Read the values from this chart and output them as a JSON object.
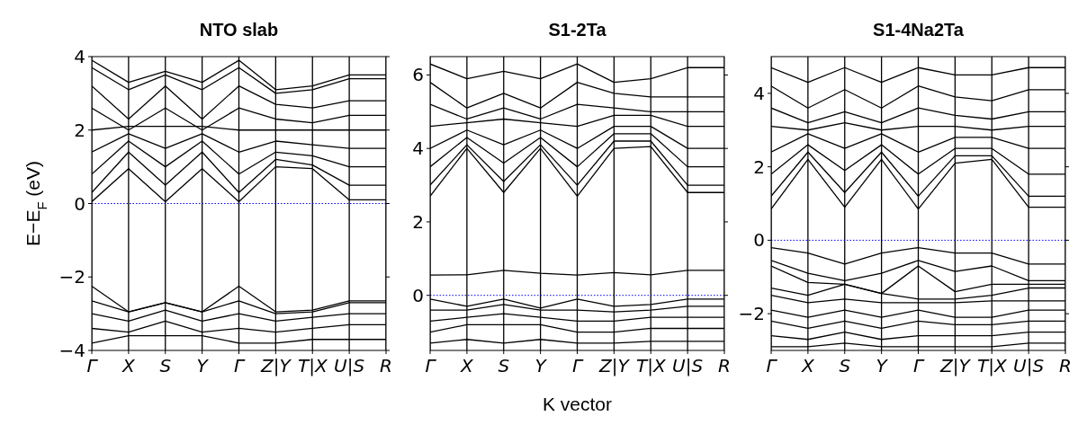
{
  "chart_data": [
    {
      "type": "line",
      "title": "NTO slab",
      "ylabel": "E−E$_{F}$ (eV)",
      "categories": [
        "Γ",
        "X",
        "S",
        "Y",
        "Γ",
        "Z|Y",
        "T|X",
        "U|S",
        "R"
      ],
      "ylim": [
        -4,
        4
      ],
      "yticks": [
        -4,
        -2,
        0,
        2,
        4
      ],
      "grid": "x",
      "series": [
        {
          "color": "#000000",
          "values": [
            0.05,
            0.95,
            0.05,
            0.95,
            0.05,
            1.0,
            0.95,
            0.1,
            0.1
          ]
        },
        {
          "color": "#000000",
          "values": [
            0.3,
            1.4,
            0.5,
            1.4,
            0.3,
            1.2,
            1.05,
            0.5,
            0.5
          ]
        },
        {
          "color": "#000000",
          "values": [
            0.8,
            1.7,
            1.0,
            1.7,
            0.8,
            1.4,
            1.3,
            1.0,
            1.0
          ]
        },
        {
          "color": "#000000",
          "values": [
            1.4,
            1.9,
            1.5,
            1.9,
            1.4,
            1.7,
            1.6,
            1.5,
            1.5
          ]
        },
        {
          "color": "#000000",
          "values": [
            2.0,
            2.1,
            2.1,
            2.1,
            2.0,
            2.0,
            2.0,
            2.0,
            2.0
          ]
        },
        {
          "color": "#000000",
          "values": [
            2.6,
            2.0,
            2.6,
            2.0,
            2.6,
            2.3,
            2.2,
            2.4,
            2.4
          ]
        },
        {
          "color": "#000000",
          "values": [
            3.2,
            2.3,
            3.2,
            2.3,
            3.2,
            2.7,
            2.6,
            2.8,
            2.8
          ]
        },
        {
          "color": "#000000",
          "values": [
            3.7,
            3.1,
            3.5,
            3.1,
            3.7,
            3.0,
            3.1,
            3.4,
            3.4
          ]
        },
        {
          "color": "#000000",
          "values": [
            3.9,
            3.3,
            3.6,
            3.3,
            3.9,
            3.1,
            3.2,
            3.5,
            3.5
          ]
        },
        {
          "color": "#000000",
          "values": [
            -2.25,
            -2.95,
            -2.7,
            -2.95,
            -2.25,
            -2.95,
            -2.9,
            -2.65,
            -2.65
          ]
        },
        {
          "color": "#000000",
          "values": [
            -2.65,
            -2.95,
            -2.7,
            -2.95,
            -2.65,
            -3.0,
            -2.95,
            -2.7,
            -2.7
          ]
        },
        {
          "color": "#000000",
          "values": [
            -3.0,
            -3.2,
            -2.9,
            -3.2,
            -3.0,
            -3.2,
            -3.1,
            -3.0,
            -3.0
          ]
        },
        {
          "color": "#000000",
          "values": [
            -3.4,
            -3.5,
            -3.2,
            -3.5,
            -3.4,
            -3.5,
            -3.4,
            -3.3,
            -3.3
          ]
        },
        {
          "color": "#000000",
          "values": [
            -3.8,
            -3.6,
            -3.6,
            -3.6,
            -3.8,
            -3.8,
            -3.7,
            -3.7,
            -3.7
          ]
        }
      ],
      "ref_lines": [
        {
          "axis": "y",
          "value": 0,
          "color": "#0000ff",
          "line_style": "dotted"
        }
      ]
    },
    {
      "type": "line",
      "title": "S1-2Ta",
      "xlabel": "K vector",
      "categories": [
        "Γ",
        "X",
        "S",
        "Y",
        "Γ",
        "Z|Y",
        "T|X",
        "U|S",
        "R"
      ],
      "ylim": [
        -1.5,
        6.5
      ],
      "yticks": [
        0,
        2,
        4,
        6
      ],
      "grid": "x",
      "series": [
        {
          "color": "#000000",
          "values": [
            2.7,
            4.0,
            2.8,
            4.0,
            2.7,
            4.0,
            4.05,
            2.8,
            2.8
          ]
        },
        {
          "color": "#000000",
          "values": [
            3.0,
            4.1,
            3.1,
            4.1,
            3.0,
            4.2,
            4.2,
            3.0,
            3.0
          ]
        },
        {
          "color": "#000000",
          "values": [
            3.5,
            4.3,
            3.6,
            4.3,
            3.5,
            4.4,
            4.4,
            3.5,
            3.5
          ]
        },
        {
          "color": "#000000",
          "values": [
            4.0,
            4.5,
            4.1,
            4.5,
            4.0,
            4.6,
            4.6,
            4.0,
            4.0
          ]
        },
        {
          "color": "#000000",
          "values": [
            4.6,
            4.7,
            4.8,
            4.7,
            4.6,
            4.9,
            4.9,
            4.6,
            4.6
          ]
        },
        {
          "color": "#000000",
          "values": [
            5.2,
            4.8,
            5.1,
            4.8,
            5.2,
            5.1,
            5.0,
            5.0,
            5.0
          ]
        },
        {
          "color": "#000000",
          "values": [
            5.8,
            5.1,
            5.5,
            5.1,
            5.8,
            5.5,
            5.4,
            5.4,
            5.4
          ]
        },
        {
          "color": "#000000",
          "values": [
            6.3,
            5.9,
            6.1,
            5.9,
            6.3,
            5.8,
            5.9,
            6.2,
            6.2
          ]
        },
        {
          "color": "#000000",
          "values": [
            0.55,
            0.56,
            0.68,
            0.6,
            0.55,
            0.62,
            0.56,
            0.68,
            0.68
          ]
        },
        {
          "color": "#000000",
          "values": [
            -0.1,
            -0.3,
            -0.1,
            -0.35,
            -0.1,
            -0.3,
            -0.25,
            -0.1,
            -0.1
          ]
        },
        {
          "color": "#000000",
          "values": [
            -0.4,
            -0.4,
            -0.25,
            -0.4,
            -0.4,
            -0.45,
            -0.4,
            -0.3,
            -0.3
          ]
        },
        {
          "color": "#000000",
          "values": [
            -0.7,
            -0.6,
            -0.5,
            -0.6,
            -0.7,
            -0.7,
            -0.6,
            -0.6,
            -0.6
          ]
        },
        {
          "color": "#000000",
          "values": [
            -1.0,
            -0.8,
            -0.8,
            -0.8,
            -1.0,
            -1.0,
            -0.9,
            -0.9,
            -0.9
          ]
        },
        {
          "color": "#000000",
          "values": [
            -1.3,
            -1.2,
            -1.3,
            -1.2,
            -1.3,
            -1.3,
            -1.25,
            -1.25,
            -1.25
          ]
        }
      ],
      "ref_lines": [
        {
          "axis": "y",
          "value": 0,
          "color": "#0000ff",
          "line_style": "dotted"
        }
      ]
    },
    {
      "type": "line",
      "title": "S1-4Na2Ta",
      "categories": [
        "Γ",
        "X",
        "S",
        "Y",
        "Γ",
        "Z|Y",
        "T|X",
        "U|S",
        "R"
      ],
      "ylim": [
        -3,
        5
      ],
      "yticks": [
        -2,
        0,
        2,
        4
      ],
      "grid": "x",
      "series": [
        {
          "color": "#000000",
          "values": [
            0.85,
            2.2,
            0.9,
            2.2,
            0.85,
            2.1,
            2.2,
            0.9,
            0.9
          ]
        },
        {
          "color": "#000000",
          "values": [
            1.2,
            2.4,
            1.3,
            2.4,
            1.2,
            2.3,
            2.3,
            1.2,
            1.2
          ]
        },
        {
          "color": "#000000",
          "values": [
            1.8,
            2.6,
            1.9,
            2.6,
            1.8,
            2.5,
            2.5,
            1.8,
            1.8
          ]
        },
        {
          "color": "#000000",
          "values": [
            2.4,
            2.9,
            2.5,
            2.9,
            2.4,
            2.8,
            2.8,
            2.5,
            2.5
          ]
        },
        {
          "color": "#000000",
          "values": [
            3.1,
            3.0,
            3.2,
            3.0,
            3.1,
            3.1,
            3.0,
            3.1,
            3.1
          ]
        },
        {
          "color": "#000000",
          "values": [
            3.6,
            3.2,
            3.5,
            3.2,
            3.6,
            3.4,
            3.3,
            3.5,
            3.5
          ]
        },
        {
          "color": "#000000",
          "values": [
            4.2,
            3.6,
            4.1,
            3.6,
            4.2,
            3.9,
            3.8,
            4.1,
            4.1
          ]
        },
        {
          "color": "#000000",
          "values": [
            4.7,
            4.3,
            4.7,
            4.3,
            4.7,
            4.5,
            4.5,
            4.7,
            4.7
          ]
        },
        {
          "color": "#000000",
          "values": [
            -0.2,
            -0.35,
            -0.65,
            -0.35,
            -0.2,
            -0.35,
            -0.35,
            -0.65,
            -0.65
          ]
        },
        {
          "color": "#000000",
          "values": [
            -0.55,
            -0.9,
            -1.1,
            -0.9,
            -0.55,
            -0.85,
            -0.7,
            -1.1,
            -1.1
          ]
        },
        {
          "color": "#000000",
          "values": [
            -0.7,
            -1.15,
            -1.2,
            -1.45,
            -0.7,
            -1.4,
            -1.2,
            -1.2,
            -1.2
          ]
        },
        {
          "color": "#000000",
          "values": [
            -1.3,
            -1.5,
            -1.2,
            -1.45,
            -1.6,
            -1.6,
            -1.5,
            -1.3,
            -1.3
          ]
        },
        {
          "color": "#000000",
          "values": [
            -1.5,
            -1.7,
            -1.6,
            -1.7,
            -1.7,
            -1.7,
            -1.65,
            -1.65,
            -1.65
          ]
        },
        {
          "color": "#000000",
          "values": [
            -1.9,
            -2.1,
            -1.9,
            -2.1,
            -1.9,
            -2.1,
            -2.1,
            -1.9,
            -1.9
          ]
        },
        {
          "color": "#000000",
          "values": [
            -2.2,
            -2.4,
            -2.2,
            -2.4,
            -2.2,
            -2.3,
            -2.3,
            -2.2,
            -2.2
          ]
        },
        {
          "color": "#000000",
          "values": [
            -2.6,
            -2.7,
            -2.5,
            -2.7,
            -2.6,
            -2.6,
            -2.6,
            -2.5,
            -2.5
          ]
        },
        {
          "color": "#000000",
          "values": [
            -2.9,
            -2.9,
            -2.8,
            -2.9,
            -2.9,
            -2.9,
            -2.9,
            -2.8,
            -2.8
          ]
        }
      ],
      "ref_lines": [
        {
          "axis": "y",
          "value": 0,
          "color": "#0000ff",
          "line_style": "dotted"
        }
      ]
    }
  ]
}
